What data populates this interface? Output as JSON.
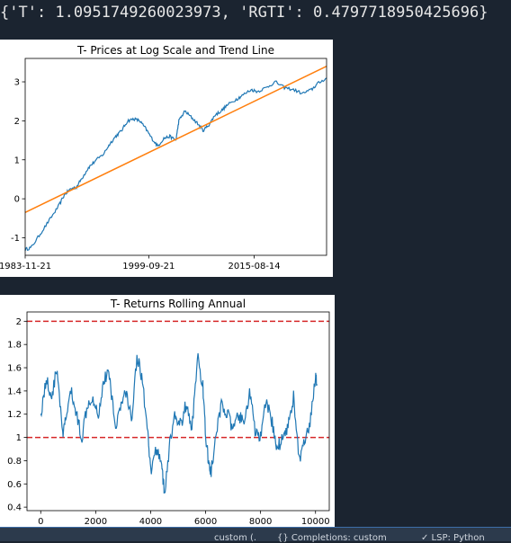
{
  "output": {
    "text": "{'T': 1.0951749260023973, 'RGTI': 0.4797718950425696}"
  },
  "chart_data": [
    {
      "type": "line",
      "title": "T- Prices at Log Scale and Trend Line",
      "x_tick_labels": [
        "1983-11-21",
        "1999-09-21",
        "2015-08-14"
      ],
      "y_ticks": [
        -1,
        0,
        1,
        2,
        3
      ],
      "ylim": [
        -1.45,
        3.6
      ],
      "xlim": [
        0,
        1
      ],
      "grid": false,
      "series": [
        {
          "color": "#1f77b4",
          "points": [
            [
              0.0,
              -1.3
            ],
            [
              0.02,
              -1.25
            ],
            [
              0.05,
              -0.9
            ],
            [
              0.08,
              -0.55
            ],
            [
              0.11,
              -0.2
            ],
            [
              0.13,
              0.1
            ],
            [
              0.15,
              0.25
            ],
            [
              0.17,
              0.3
            ],
            [
              0.19,
              0.55
            ],
            [
              0.21,
              0.8
            ],
            [
              0.23,
              0.95
            ],
            [
              0.26,
              1.15
            ],
            [
              0.28,
              1.4
            ],
            [
              0.3,
              1.6
            ],
            [
              0.32,
              1.75
            ],
            [
              0.34,
              2.0
            ],
            [
              0.36,
              2.05
            ],
            [
              0.38,
              2.0
            ],
            [
              0.4,
              1.8
            ],
            [
              0.42,
              1.55
            ],
            [
              0.44,
              1.35
            ],
            [
              0.46,
              1.55
            ],
            [
              0.48,
              1.6
            ],
            [
              0.5,
              1.5
            ],
            [
              0.51,
              2.0
            ],
            [
              0.53,
              2.25
            ],
            [
              0.55,
              2.1
            ],
            [
              0.57,
              1.95
            ],
            [
              0.59,
              1.75
            ],
            [
              0.61,
              1.9
            ],
            [
              0.63,
              2.15
            ],
            [
              0.65,
              2.25
            ],
            [
              0.67,
              2.4
            ],
            [
              0.7,
              2.55
            ],
            [
              0.72,
              2.65
            ],
            [
              0.75,
              2.8
            ],
            [
              0.77,
              2.75
            ],
            [
              0.8,
              2.85
            ],
            [
              0.83,
              3.0
            ],
            [
              0.86,
              2.85
            ],
            [
              0.89,
              2.8
            ],
            [
              0.92,
              2.7
            ],
            [
              0.95,
              2.8
            ],
            [
              0.97,
              2.95
            ],
            [
              1.0,
              3.1
            ]
          ]
        },
        {
          "color": "#ff7f0e",
          "points": [
            [
              0.0,
              -0.35
            ],
            [
              1.0,
              3.4
            ]
          ]
        }
      ]
    },
    {
      "type": "line",
      "title": "T- Returns Rolling Annual",
      "x_ticks": [
        0,
        2000,
        4000,
        6000,
        8000,
        10000
      ],
      "y_ticks": [
        0.4,
        0.6,
        0.8,
        1.0,
        1.2,
        1.4,
        1.6,
        1.8,
        2.0
      ],
      "xlim": [
        -500,
        10500
      ],
      "ylim": [
        0.37,
        2.08
      ],
      "grid": false,
      "reference_lines": [
        {
          "y": 2.0,
          "color": "#d62728",
          "style": "dashed"
        },
        {
          "y": 1.0,
          "color": "#d62728",
          "style": "dashed"
        }
      ],
      "series": [
        {
          "color": "#1f77b4",
          "points": [
            [
              0,
              1.2
            ],
            [
              200,
              1.5
            ],
            [
              400,
              1.35
            ],
            [
              600,
              1.6
            ],
            [
              800,
              1.0
            ],
            [
              900,
              1.15
            ],
            [
              1100,
              1.4
            ],
            [
              1300,
              1.2
            ],
            [
              1500,
              1.0
            ],
            [
              1700,
              1.3
            ],
            [
              1900,
              1.35
            ],
            [
              2100,
              1.2
            ],
            [
              2300,
              1.5
            ],
            [
              2500,
              1.55
            ],
            [
              2700,
              1.1
            ],
            [
              2900,
              1.25
            ],
            [
              3100,
              1.4
            ],
            [
              3300,
              1.15
            ],
            [
              3500,
              1.7
            ],
            [
              3700,
              1.5
            ],
            [
              3900,
              1.0
            ],
            [
              4000,
              0.7
            ],
            [
              4200,
              0.9
            ],
            [
              4400,
              0.8
            ],
            [
              4500,
              0.5
            ],
            [
              4700,
              0.95
            ],
            [
              4900,
              1.2
            ],
            [
              5100,
              1.1
            ],
            [
              5300,
              1.3
            ],
            [
              5500,
              1.05
            ],
            [
              5700,
              1.7
            ],
            [
              5900,
              1.45
            ],
            [
              6000,
              1.0
            ],
            [
              6100,
              0.8
            ],
            [
              6200,
              0.7
            ],
            [
              6400,
              1.05
            ],
            [
              6600,
              1.3
            ],
            [
              6800,
              1.2
            ],
            [
              7000,
              1.05
            ],
            [
              7200,
              1.2
            ],
            [
              7400,
              1.1
            ],
            [
              7600,
              1.4
            ],
            [
              7800,
              1.05
            ],
            [
              8000,
              1.0
            ],
            [
              8200,
              1.3
            ],
            [
              8400,
              1.15
            ],
            [
              8600,
              0.9
            ],
            [
              8800,
              1.0
            ],
            [
              9000,
              1.1
            ],
            [
              9200,
              1.35
            ],
            [
              9400,
              0.8
            ],
            [
              9600,
              0.95
            ],
            [
              9800,
              1.1
            ],
            [
              10000,
              1.55
            ],
            [
              10050,
              1.45
            ]
          ]
        }
      ]
    }
  ],
  "status_bar": {
    "item1": "custom (.",
    "item2": "{} Completions: custom",
    "item3": "✓ LSP: Python"
  }
}
